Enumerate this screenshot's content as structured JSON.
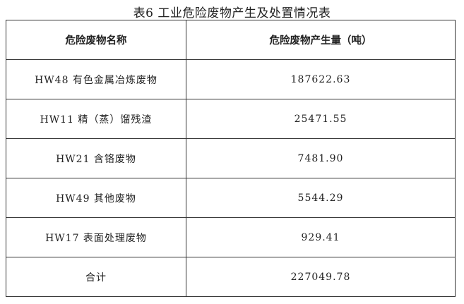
{
  "caption": "表6 工业危险废物产生及处置情况表",
  "headers": [
    "危险废物名称",
    "危险废物产生量（吨）"
  ],
  "rows": [
    {
      "name": "HW48 有色金属冶炼废物",
      "amount": "187622.63"
    },
    {
      "name": "HW11 精（蒸）馏残渣",
      "amount": "25471.55"
    },
    {
      "name": "HW21 含铬废物",
      "amount": "7481.90"
    },
    {
      "name": "HW49 其他废物",
      "amount": "5544.29"
    },
    {
      "name": "HW17 表面处理废物",
      "amount": "929.41"
    },
    {
      "name": "合计",
      "amount": "227049.78"
    }
  ]
}
